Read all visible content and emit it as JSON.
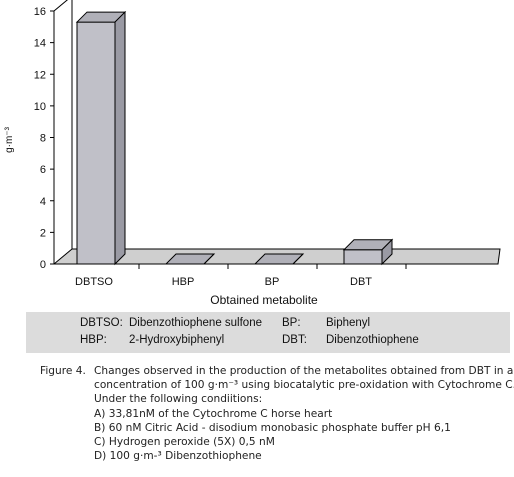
{
  "chart_data": {
    "type": "bar",
    "categories": [
      "DBTSO",
      "HBP",
      "BP",
      "DBT"
    ],
    "values": [
      15.3,
      0,
      0,
      0.9
    ],
    "xlabel": "Obtained metabolite",
    "ylabel": "g·m⁻³",
    "ylim": [
      0,
      16
    ],
    "yticks": [
      "0",
      "2",
      "4",
      "6",
      "8",
      "10",
      "12",
      "14",
      "16"
    ],
    "grid": false,
    "bar_color": "#c0c0c8"
  },
  "legend": {
    "rows": [
      {
        "abbr1": "DBTSO:",
        "desc1": "Dibenzothiophene sulfone",
        "abbr2": "BP:",
        "desc2": "Biphenyl"
      },
      {
        "abbr1": "HBP:",
        "desc1": "2-Hydroxybiphenyl",
        "abbr2": "DBT:",
        "desc2": "Dibenzothiophene"
      }
    ]
  },
  "caption": {
    "label": "Figure 4.",
    "lines": [
      "Changes observed in the production of the metabolites obtained from DBT in a",
      "concentration of 100 g·m⁻³  using biocatalytic pre-oxidation with Cytochrome C.",
      "Under the following condiitions:",
      "A) 33,81nM of the Cytochrome C horse heart",
      "B) 60 nM Citric Acid - disodium monobasic phosphate buffer pH 6,1",
      "C) Hydrogen peroxide (5X) 0,5 nM",
      "D) 100 g·m-³ Dibenzothiophene"
    ]
  }
}
